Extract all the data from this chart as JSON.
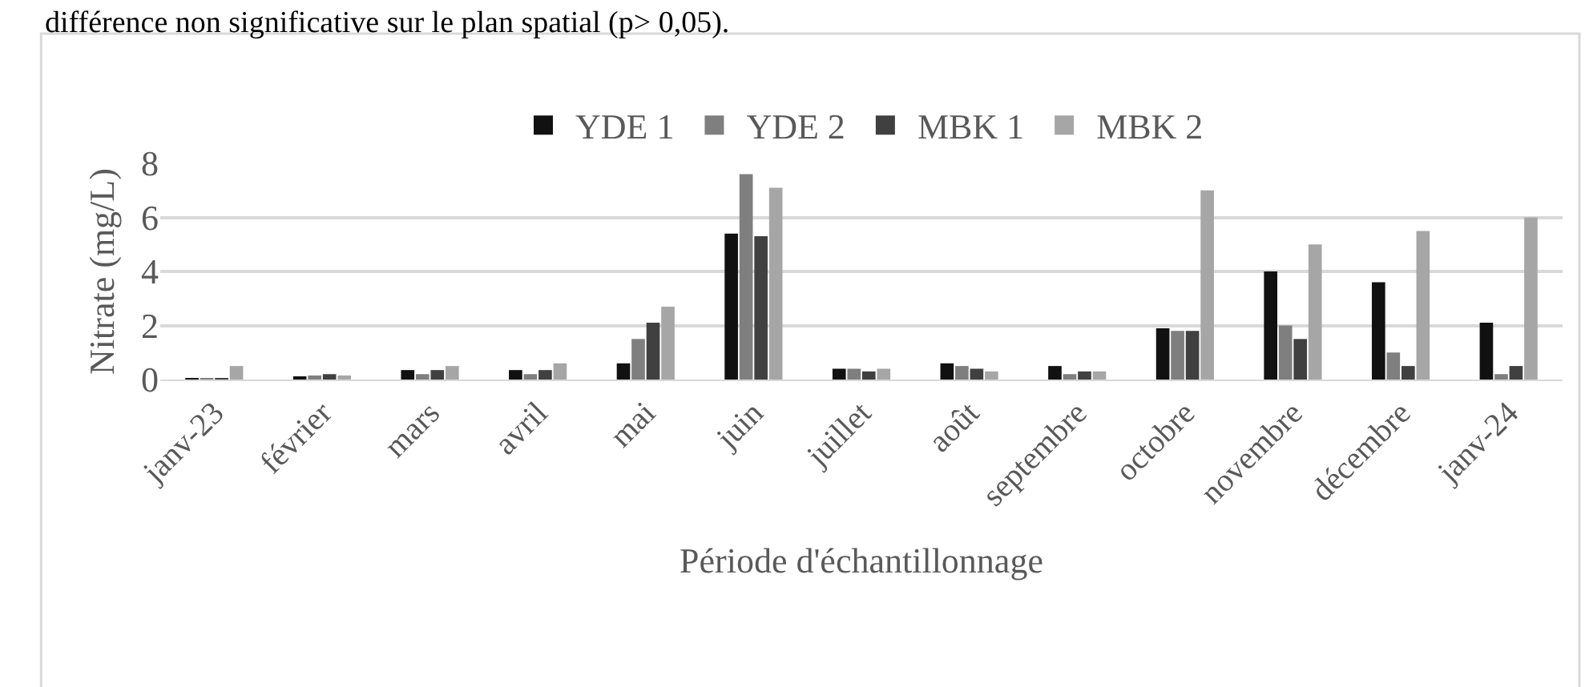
{
  "chart_data": {
    "type": "bar",
    "xlabel": "Période d'échantillonnage",
    "ylabel": "Nitrate (mg/L)",
    "annotations": [
      "différence non significative sur le plan spatial (p> 0,05)."
    ],
    "categories": [
      "janv-23",
      "février",
      "mars",
      "avril",
      "mai",
      "juin",
      "juillet",
      "août",
      "septembre",
      "octobre",
      "novembre",
      "décembre",
      "janv-24"
    ],
    "series": [
      {
        "name": "YDE 1",
        "color": "#111111",
        "values": [
          0.05,
          0.1,
          0.35,
          0.35,
          0.6,
          5.4,
          0.4,
          0.6,
          0.5,
          1.9,
          4.0,
          3.6,
          2.1
        ]
      },
      {
        "name": "YDE 2",
        "color": "#7f7f7f",
        "values": [
          0.05,
          0.15,
          0.2,
          0.2,
          1.5,
          7.6,
          0.4,
          0.5,
          0.2,
          1.8,
          2.0,
          1.0,
          0.2
        ]
      },
      {
        "name": "MBK 1",
        "color": "#404040",
        "values": [
          0.05,
          0.2,
          0.35,
          0.35,
          2.1,
          5.3,
          0.3,
          0.4,
          0.3,
          1.8,
          1.5,
          0.5,
          0.5
        ]
      },
      {
        "name": "MBK 2",
        "color": "#a6a6a6",
        "values": [
          0.5,
          0.15,
          0.5,
          0.6,
          2.7,
          7.1,
          0.4,
          0.3,
          0.3,
          7.0,
          5.0,
          5.5,
          6.0
        ]
      }
    ],
    "ylim": [
      0,
      8
    ],
    "yticks": [
      0,
      2,
      4,
      6,
      8
    ],
    "grid": "y",
    "legend": "top"
  }
}
